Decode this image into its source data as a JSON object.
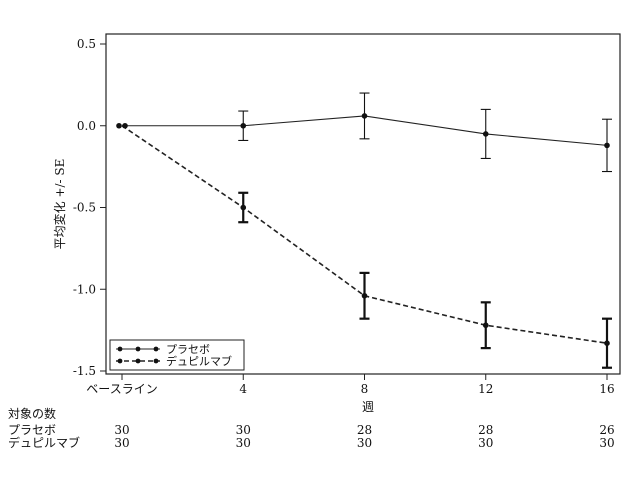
{
  "chart_data": {
    "type": "line",
    "title": "",
    "xlabel": "週",
    "ylabel": "平均変化 +/- SE",
    "x": [
      0,
      4,
      8,
      12,
      16
    ],
    "x_tick_labels": [
      "ベースライン",
      "4",
      "8",
      "12",
      "16"
    ],
    "ylim": [
      -1.5,
      0.5
    ],
    "xlim": [
      0,
      16
    ],
    "y_ticks": [
      "0.5",
      "0.0",
      "-0.5",
      "-1.0",
      "-1.5"
    ],
    "grid": false,
    "legend_position": "bottom-left",
    "series": [
      {
        "name": "プラセボ",
        "line_style": "solid",
        "values": [
          0.0,
          0.0,
          0.06,
          -0.05,
          -0.12
        ],
        "se": [
          0.0,
          0.09,
          0.14,
          0.15,
          0.16
        ]
      },
      {
        "name": "デュピルマブ",
        "line_style": "dashed",
        "values": [
          0.0,
          -0.5,
          -1.04,
          -1.22,
          -1.33
        ],
        "se": [
          0.0,
          0.09,
          0.14,
          0.14,
          0.15
        ]
      }
    ],
    "subjects_table": {
      "header": "対象の数",
      "rows": [
        {
          "label": "プラセボ",
          "counts": [
            "30",
            "30",
            "28",
            "28",
            "26"
          ]
        },
        {
          "label": "デュピルマブ",
          "counts": [
            "30",
            "30",
            "30",
            "30",
            "30"
          ]
        }
      ]
    }
  }
}
